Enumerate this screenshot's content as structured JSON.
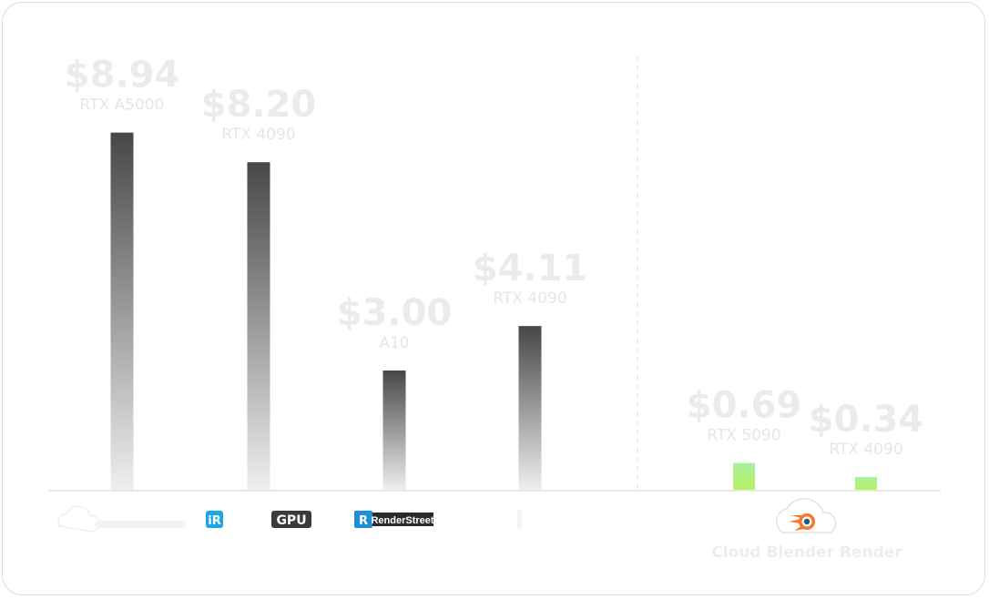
{
  "chart_data": {
    "type": "bar",
    "title": "",
    "xlabel": "",
    "ylabel": "",
    "ylim": [
      0,
      10
    ],
    "grid": false,
    "bars": [
      {
        "value": 8.94,
        "value_label": "$8.94",
        "gpu": "RTX A5000",
        "group": "competitor",
        "color_top": "#474747",
        "color_bottom": "#efefef"
      },
      {
        "value": 8.2,
        "value_label": "$8.20",
        "gpu": "RTX 4090",
        "group": "competitor",
        "color_top": "#474747",
        "color_bottom": "#efefef"
      },
      {
        "value": 3.0,
        "value_label": "$3.00",
        "gpu": "A10",
        "group": "competitor",
        "color_top": "#474747",
        "color_bottom": "#efefef"
      },
      {
        "value": 4.11,
        "value_label": "$4.11",
        "gpu": "RTX 4090",
        "group": "competitor",
        "color_top": "#474747",
        "color_bottom": "#efefef"
      },
      {
        "value": 0.69,
        "value_label": "$0.69",
        "gpu": "RTX 5090",
        "group": "highlight",
        "color_top": "#a8f0a0",
        "color_bottom": "#b8f060"
      },
      {
        "value": 0.34,
        "value_label": "$0.34",
        "gpu": "RTX 4090",
        "group": "highlight",
        "color_top": "#a8f0a0",
        "color_bottom": "#b8f060"
      }
    ]
  },
  "logos": {
    "gpu_logo_text": "GPU",
    "renderstreet_text": "RenderStreet",
    "renderstreet_mark": "R",
    "ir_mark": "iR",
    "cloud_blender_name": "Cloud Blender Render"
  },
  "colors": {
    "card_border": "#dddddd",
    "axis": "#e8e8e8",
    "divider": "#e6e6e6",
    "blender_orange": "#f5792a",
    "blender_blue": "#265787",
    "renderstreet_blue": "#1f8fd8",
    "ir_blue": "#1aa7e8"
  }
}
